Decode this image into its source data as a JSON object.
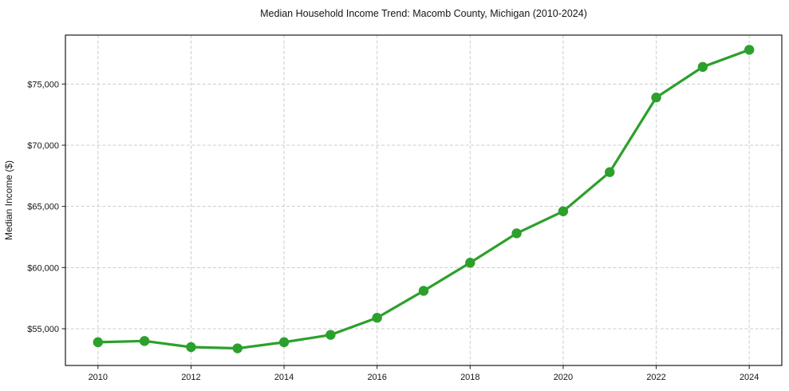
{
  "chart_data": {
    "type": "line",
    "title": "Median Household Income Trend: Macomb County, Michigan (2010-2024)",
    "xlabel": "",
    "ylabel": "Median Income ($)",
    "series": [
      {
        "name": "Median household income",
        "x": [
          2010,
          2011,
          2012,
          2013,
          2014,
          2015,
          2016,
          2017,
          2018,
          2019,
          2020,
          2021,
          2022,
          2023,
          2024
        ],
        "values": [
          53900,
          54000,
          53500,
          53400,
          53900,
          54500,
          55900,
          58100,
          60400,
          62800,
          64600,
          67800,
          73900,
          76400,
          77800
        ]
      }
    ],
    "xlim": [
      2009.3,
      2024.7
    ],
    "ylim": [
      52000,
      79000
    ],
    "x_ticks": [
      2010,
      2012,
      2014,
      2016,
      2018,
      2020,
      2022,
      2024
    ],
    "x_tick_labels": [
      "2010",
      "2012",
      "2014",
      "2016",
      "2018",
      "2020",
      "2022",
      "2024"
    ],
    "y_ticks": [
      55000,
      60000,
      65000,
      70000,
      75000
    ],
    "y_tick_labels": [
      "$55,000",
      "$60,000",
      "$65,000",
      "$70,000",
      "$75,000"
    ],
    "grid": true,
    "grid_style": "dashed",
    "legend": "none",
    "colors": {
      "line": "#2ca02c",
      "marker": "#2ca02c",
      "grid": "#cccccc",
      "spine": "#1a1a1a",
      "text": "#151515",
      "background": "#ffffff"
    }
  }
}
